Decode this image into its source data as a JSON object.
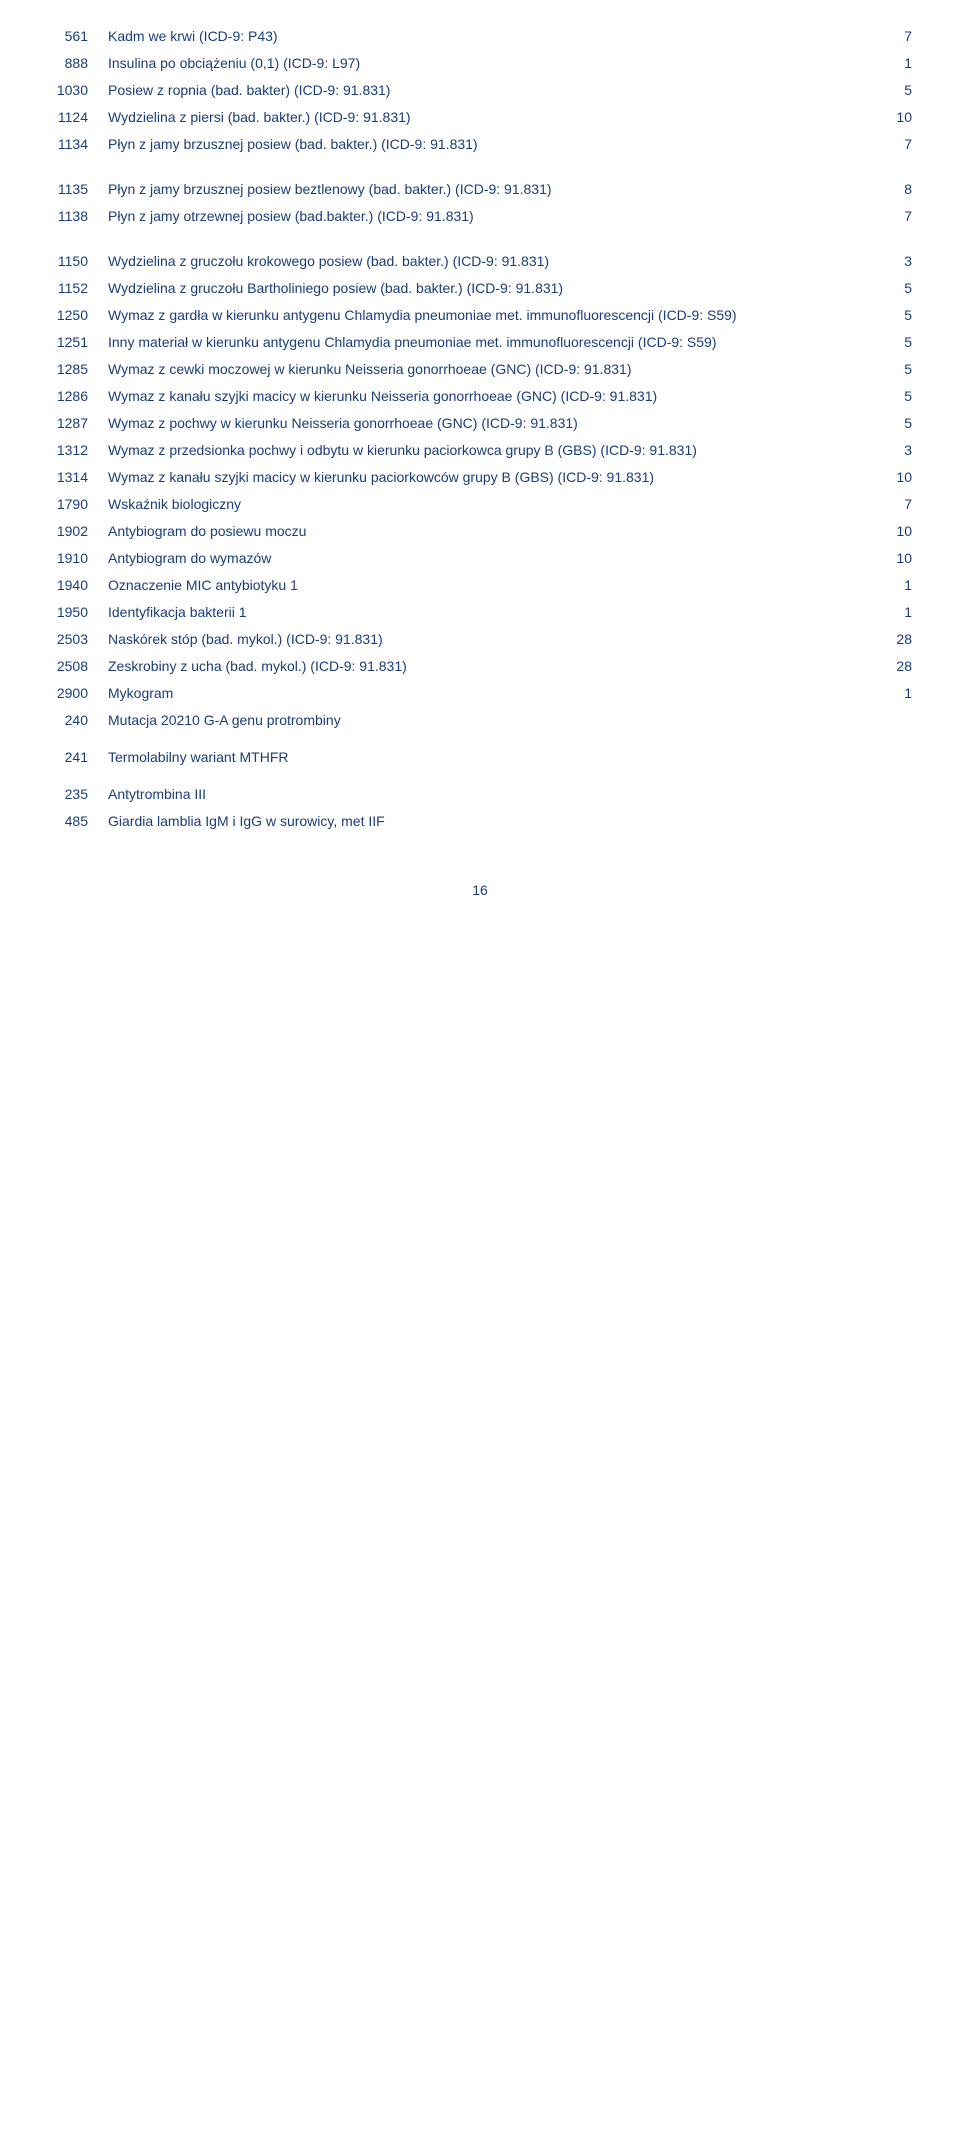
{
  "text_color": "#1a3d7a",
  "background_color": "#ffffff",
  "font_family": "Verdana, Tahoma, Arial, sans-serif",
  "font_size_pt": 11,
  "page_number": "16",
  "rows": [
    {
      "code": "561",
      "desc": "Kadm we krwi (ICD-9: P43)",
      "val": "7"
    },
    {
      "code": "888",
      "desc": "Insulina po obciążeniu (0,1) (ICD-9: L97)",
      "val": "1"
    },
    {
      "code": "1030",
      "desc": "Posiew z ropnia (bad. bakter) (ICD-9: 91.831)",
      "val": "5"
    },
    {
      "code": "1124",
      "desc": "Wydzielina z piersi (bad. bakter.) (ICD-9: 91.831)",
      "val": "10"
    },
    {
      "code": "1134",
      "desc": "Płyn z jamy brzusznej posiew (bad. bakter.) (ICD-9: 91.831)",
      "val": "7"
    },
    {
      "gap": "med"
    },
    {
      "code": "1135",
      "desc": "Płyn z jamy brzusznej posiew beztlenowy (bad. bakter.) (ICD-9: 91.831)",
      "val": "8"
    },
    {
      "code": "1138",
      "desc": "Płyn z jamy otrzewnej posiew (bad.bakter.) (ICD-9: 91.831)",
      "val": "7"
    },
    {
      "gap": "med"
    },
    {
      "code": "1150",
      "desc": "Wydzielina z gruczołu krokowego posiew (bad. bakter.) (ICD-9: 91.831)",
      "val": "3"
    },
    {
      "code": "1152",
      "desc": "Wydzielina z gruczołu Bartholiniego posiew (bad. bakter.) (ICD-9: 91.831)",
      "val": "5"
    },
    {
      "code": "1250",
      "desc": "Wymaz z gardła w kierunku antygenu Chlamydia pneumoniae met. immunofluorescencji (ICD-9: S59)",
      "val": "5"
    },
    {
      "code": "1251",
      "desc": "Inny materiał w kierunku antygenu Chlamydia pneumoniae met. immunofluorescencji (ICD-9: S59)",
      "val": "5"
    },
    {
      "code": "1285",
      "desc": "Wymaz  z cewki moczowej w kierunku Neisseria gonorrhoeae (GNC) (ICD-9: 91.831)",
      "val": "5"
    },
    {
      "code": "1286",
      "desc": "Wymaz  z kanału szyjki macicy w kierunku Neisseria gonorrhoeae (GNC) (ICD-9: 91.831)",
      "val": "5"
    },
    {
      "code": "1287",
      "desc": "Wymaz z pochwy w kierunku Neisseria gonorrhoeae (GNC) (ICD-9: 91.831)",
      "val": "5"
    },
    {
      "code": "1312",
      "desc": "Wymaz z przedsionka pochwy i odbytu w kierunku paciorkowca grupy B (GBS) (ICD-9: 91.831)",
      "val": "3"
    },
    {
      "code": "1314",
      "desc": "Wymaz z kanału szyjki macicy w kierunku paciorkowców grupy B (GBS) (ICD-9: 91.831)",
      "val": "10"
    },
    {
      "code": "1790",
      "desc": "Wskaźnik biologiczny",
      "val": "7"
    },
    {
      "code": "1902",
      "desc": "Antybiogram do posiewu moczu",
      "val": "10"
    },
    {
      "code": "1910",
      "desc": "Antybiogram do wymazów",
      "val": "10"
    },
    {
      "code": "1940",
      "desc": "Oznaczenie MIC antybiotyku 1",
      "val": "1"
    },
    {
      "code": "1950",
      "desc": "Identyfikacja bakterii 1",
      "val": "1"
    },
    {
      "code": "2503",
      "desc": "Naskórek stóp (bad. mykol.) (ICD-9: 91.831)",
      "val": "28"
    },
    {
      "code": "2508",
      "desc": "Zeskrobiny z ucha (bad. mykol.) (ICD-9: 91.831)",
      "val": "28"
    },
    {
      "code": "2900",
      "desc": "Mykogram",
      "val": "1"
    },
    {
      "code": "240",
      "desc": "Mutacja 20210 G-A genu protrombiny",
      "val": ""
    },
    {
      "gap": "small"
    },
    {
      "code": "241",
      "desc": "Termolabilny wariant MTHFR",
      "val": ""
    },
    {
      "gap": "small"
    },
    {
      "code": "235",
      "desc": "Antytrombina III",
      "val": ""
    },
    {
      "code": "485",
      "desc": "Giardia lamblia IgM i IgG w surowicy, met IIF",
      "val": ""
    }
  ]
}
